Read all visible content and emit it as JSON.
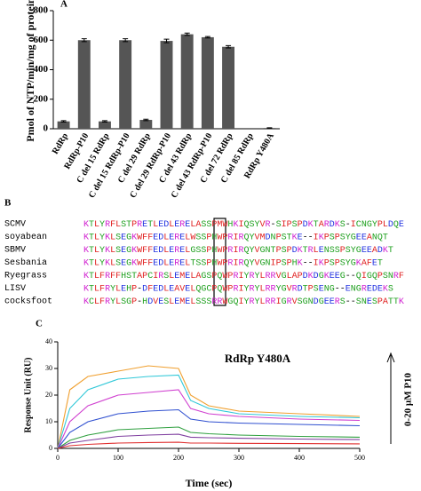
{
  "chart_data": [
    {
      "type": "bar",
      "panel_label": "A",
      "ylabel": "Pmol of NTP/min/mg of protein",
      "categories": [
        "RdRp",
        "RdRp-P10",
        "C del 15 RdRp",
        "C del 15 RdRp-P10",
        "C del 29 RdRp",
        "C del 29 RdRp-P10",
        "C del 43 RdRp",
        "C del 43 RdRp-P10",
        "C del 72 RdRp",
        "C del 85 RdRp",
        "RdRp Y480A"
      ],
      "values": [
        50,
        600,
        50,
        600,
        60,
        595,
        640,
        620,
        555,
        0,
        5
      ],
      "errors": [
        5,
        10,
        5,
        10,
        5,
        12,
        8,
        5,
        8,
        0,
        2
      ],
      "color": "#555555",
      "ylim": [
        0,
        800
      ],
      "yticks": [
        0,
        200,
        400,
        600,
        800
      ]
    },
    {
      "type": "line",
      "panel_label": "C",
      "title": "RdRp Y480A",
      "xlabel": "Time (sec)",
      "ylabel": "Response Unit (RU)",
      "annotation": "0-20 µM P10",
      "x": [
        0,
        20,
        50,
        100,
        150,
        200,
        220,
        250,
        300,
        400,
        500
      ],
      "series": [
        {
          "color": "#f0a030",
          "values": [
            0,
            22,
            27,
            29,
            31,
            30,
            20,
            16,
            14,
            13,
            12
          ]
        },
        {
          "color": "#30c8d8",
          "values": [
            0,
            15,
            22,
            26,
            27,
            27.5,
            18,
            15,
            13,
            12,
            11.5
          ]
        },
        {
          "color": "#d040d0",
          "values": [
            0,
            10,
            16,
            20,
            21,
            22,
            15,
            13,
            12,
            11,
            10.5
          ]
        },
        {
          "color": "#3050d0",
          "values": [
            0,
            6,
            10,
            13,
            14,
            14.5,
            11,
            10,
            9.5,
            9,
            8.5
          ]
        },
        {
          "color": "#30a040",
          "values": [
            0,
            3,
            5,
            7,
            7.5,
            8,
            6,
            5.5,
            5,
            4.5,
            4.2
          ]
        },
        {
          "color": "#8040a0",
          "values": [
            0,
            2,
            3,
            4.5,
            5,
            5.3,
            4.2,
            4,
            3.8,
            3.5,
            3.3
          ]
        },
        {
          "color": "#e03030",
          "values": [
            0,
            1,
            1.5,
            2,
            2.2,
            2.3,
            2,
            2,
            1.9,
            1.8,
            1.7
          ]
        }
      ],
      "xlim": [
        0,
        500
      ],
      "xticks": [
        0,
        100,
        200,
        300,
        400,
        500
      ],
      "ylim": [
        0,
        40
      ],
      "yticks": [
        0,
        10,
        20,
        30,
        40
      ]
    }
  ],
  "alignment": {
    "label": "B",
    "rows": [
      {
        "name": "SCMV",
        "sequence": "KTLYRFLSTPRETLEDLERELASSPMWHKIQSYVR-SIPSPDKTARDKS-ICNGYPLDQE"
      },
      {
        "name": "soyabean",
        "sequence": "KTLYKLSEGKWFFEDLERELWSSPHWPRIRQYVMDNPSTKE--IKPSPSYGEEANQT"
      },
      {
        "name": "SBMV",
        "sequence": "KTLYKLSEGKWFFEDLERELGSSPHWPRIRQYVGNTPSPDKTRLENSSPSYGEEADKT"
      },
      {
        "name": "Sesbania",
        "sequence": "KTLYKLSEGKWFFEDLERELTSSPHWPRIRQYVGNIPSPHK--IKPSPSYGKAFET"
      },
      {
        "name": "Ryegrass",
        "sequence": "KTLFRFFHSTAPCIRSLEMELAGSPQWPRIYRYLRRVGLAPDKDGKEEG--QIGQPSNRF"
      },
      {
        "name": "LISV",
        "sequence": "KTLFRYLEHP-DFEDLEAVELQGCPQWPRIYRYLRRYGVRDTPSENG--ENGREDEKS"
      },
      {
        "name": "cocksfoot",
        "sequence": "KCLFRYLSGP-HDVESLEMELSSSRRWGQIYRYLRRIGRVSGNDGEERS--SNESPATTK"
      }
    ]
  }
}
